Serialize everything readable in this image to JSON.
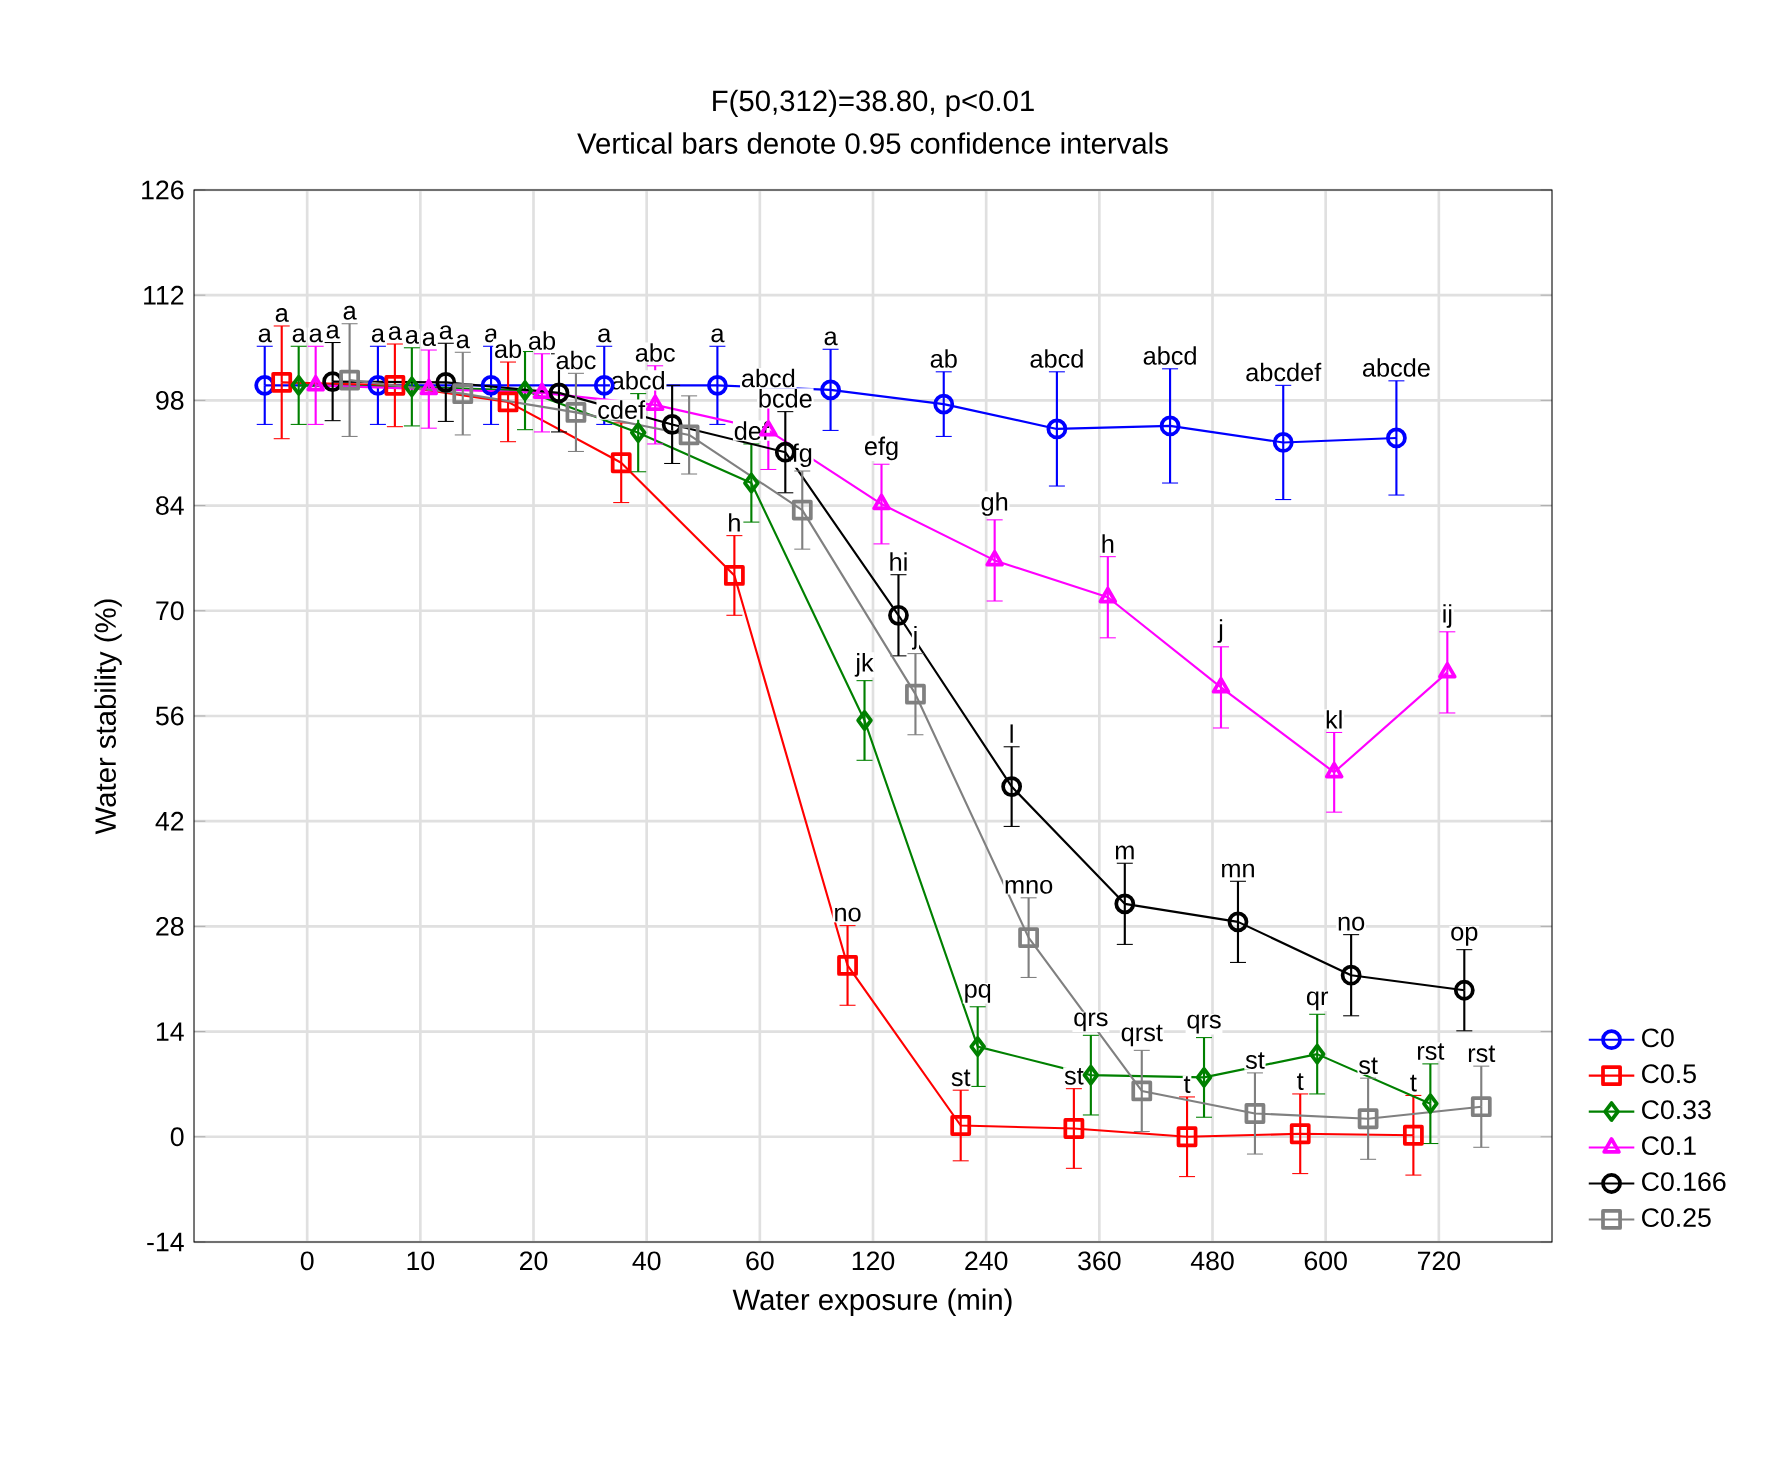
{
  "chart_data": {
    "type": "line",
    "title": "F(50,312)=38.80, p<0.01",
    "subtitle": "Vertical bars denote 0.95 confidence intervals",
    "xlabel": "Water exposure (min)",
    "ylabel": "Water stability (%)",
    "categories": [
      "0",
      "10",
      "20",
      "40",
      "60",
      "120",
      "240",
      "360",
      "480",
      "600",
      "720"
    ],
    "ylim": [
      -14,
      126
    ],
    "yticks": [
      -14,
      0,
      14,
      28,
      42,
      56,
      70,
      84,
      98,
      112,
      126
    ],
    "grid": true,
    "legend": "bottom right",
    "series": [
      {
        "name": "C0",
        "color": "#0000ff",
        "marker": "circle",
        "values": [
          100,
          100,
          100,
          100,
          100,
          99.4,
          97.5,
          94.2,
          94.6,
          92.4,
          93
        ],
        "errors": [
          5.2,
          5.2,
          5.2,
          5.2,
          5.2,
          5.4,
          4.3,
          7.6,
          7.6,
          7.6,
          7.6
        ],
        "value_labels": [
          "a",
          "a",
          "a",
          "a",
          "a",
          "a",
          "ab",
          "abcd",
          "abcd",
          "abcdef",
          "abcde"
        ]
      },
      {
        "name": "C0.5",
        "color": "#ff0000",
        "marker": "square",
        "values": [
          100.4,
          100,
          97.8,
          89.7,
          74.7,
          22.8,
          1.5,
          1.1,
          0,
          0.4,
          0.2
        ],
        "errors": [
          7.5,
          5.5,
          5.3,
          5.3,
          5.3,
          5.3,
          4.7,
          5.3,
          5.3,
          5.3,
          5.3
        ],
        "value_labels": [
          "a",
          "a",
          "ab",
          "cdef",
          "h",
          "no",
          "st",
          "st",
          "t",
          "t",
          "t"
        ]
      },
      {
        "name": "C0.33",
        "color": "#008000",
        "marker": "diamond",
        "values": [
          100,
          99.8,
          99.3,
          93.7,
          87,
          55.4,
          12,
          8.2,
          7.9,
          11,
          4.4
        ],
        "errors": [
          5.2,
          5.2,
          5.2,
          5.2,
          5.2,
          5.3,
          5.3,
          5.3,
          5.3,
          5.3,
          5.3
        ],
        "value_labels": [
          "a",
          "a",
          null,
          "abcd",
          "def",
          "jk",
          "pq",
          "qrs",
          "qrs",
          "qr",
          "rst"
        ]
      },
      {
        "name": "C0.1",
        "color": "#ff00ff",
        "marker": "triangle",
        "values": [
          100,
          99.5,
          99,
          97.4,
          94,
          84.2,
          76.7,
          71.8,
          59.8,
          48.5,
          61.8
        ],
        "errors": [
          5.2,
          5.2,
          5.2,
          5.2,
          5.2,
          5.3,
          5.4,
          5.4,
          5.4,
          5.3,
          5.4
        ],
        "value_labels": [
          "a",
          "a",
          "ab",
          "abc",
          "abcd",
          "efg",
          "gh",
          "h",
          "j",
          "kl",
          "ij"
        ]
      },
      {
        "name": "C0.166",
        "color": "#000000",
        "marker": "circle",
        "values": [
          100.5,
          100.4,
          99,
          94.8,
          91.1,
          69.4,
          46.6,
          31,
          28.6,
          21.5,
          19.5
        ],
        "errors": [
          5.2,
          5.2,
          5.2,
          5.2,
          5.4,
          5.4,
          5.3,
          5.4,
          5.4,
          5.4,
          5.4
        ],
        "value_labels": [
          "a",
          "a",
          null,
          null,
          "bcde",
          "hi",
          "l",
          "m",
          "mn",
          "no",
          "op"
        ]
      },
      {
        "name": "C0.25",
        "color": "#808080",
        "marker": "square",
        "values": [
          100.7,
          98.9,
          96.4,
          93.4,
          83.4,
          58.9,
          26.5,
          6.1,
          3.1,
          2.4,
          4
        ],
        "errors": [
          7.5,
          5.5,
          5.2,
          5.2,
          5.2,
          5.4,
          5.3,
          5.4,
          5.4,
          5.4,
          5.4
        ],
        "value_labels": [
          "a",
          "a",
          "abc",
          null,
          "fg",
          "j",
          "mno",
          "qrst",
          "st",
          "st",
          "rst"
        ]
      }
    ]
  }
}
